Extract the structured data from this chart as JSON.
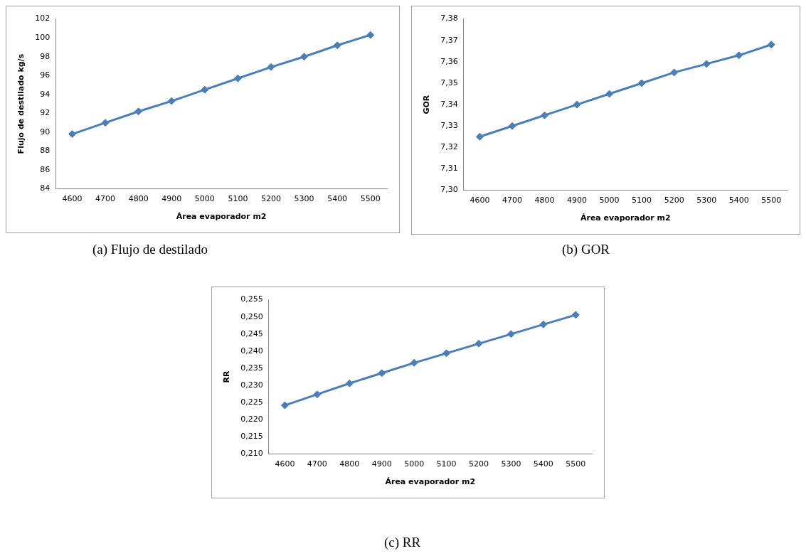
{
  "chart_data": [
    {
      "type": "line",
      "xlabel": "Área evaporador m2",
      "ylabel": "Flujo de destilado kg/s",
      "categories": [
        "4600",
        "4700",
        "4800",
        "4900",
        "5000",
        "5100",
        "5200",
        "5300",
        "5400",
        "5500"
      ],
      "series": [
        {
          "color": "#4a7ebb",
          "values": [
            89.8,
            91.0,
            92.2,
            93.3,
            94.5,
            95.7,
            96.9,
            98.0,
            99.2,
            100.3
          ]
        }
      ],
      "ylim": [
        84,
        102
      ],
      "yticks": [
        84,
        86,
        88,
        90,
        92,
        94,
        96,
        98,
        100,
        102
      ],
      "grid": false,
      "legend": false,
      "marker": "diamond",
      "line_style": "solid",
      "annotations": [
        "(a) Flujo de destilado"
      ]
    },
    {
      "type": "line",
      "xlabel": "Área evaporador m2",
      "ylabel": "GOR",
      "categories": [
        "4600",
        "4700",
        "4800",
        "4900",
        "5000",
        "5100",
        "5200",
        "5300",
        "5400",
        "5500"
      ],
      "series": [
        {
          "color": "#4a7ebb",
          "values": [
            7.325,
            7.33,
            7.335,
            7.34,
            7.345,
            7.35,
            7.355,
            7.359,
            7.363,
            7.368
          ]
        }
      ],
      "ylim": [
        7.3,
        7.38
      ],
      "yticks": [
        {
          "value": 7.3,
          "label": "7,30"
        },
        {
          "value": 7.31,
          "label": "7,31"
        },
        {
          "value": 7.32,
          "label": "7,32"
        },
        {
          "value": 7.33,
          "label": "7,33"
        },
        {
          "value": 7.34,
          "label": "7,34"
        },
        {
          "value": 7.35,
          "label": "7,35"
        },
        {
          "value": 7.36,
          "label": "7,36"
        },
        {
          "value": 7.37,
          "label": "7,37"
        },
        {
          "value": 7.38,
          "label": "7,38"
        }
      ],
      "grid": false,
      "legend": false,
      "marker": "diamond",
      "line_style": "solid",
      "annotations": [
        "(b) GOR"
      ]
    },
    {
      "type": "line",
      "xlabel": "Área evaporador m2",
      "ylabel": "RR",
      "categories": [
        "4600",
        "4700",
        "4800",
        "4900",
        "5000",
        "5100",
        "5200",
        "5300",
        "5400",
        "5500"
      ],
      "series": [
        {
          "color": "#4a7ebb",
          "values": [
            0.2242,
            0.2274,
            0.2306,
            0.2336,
            0.2366,
            0.2394,
            0.2422,
            0.245,
            0.2478,
            0.2506
          ]
        }
      ],
      "ylim": [
        0.21,
        0.255
      ],
      "yticks": [
        {
          "value": 0.21,
          "label": "0,210"
        },
        {
          "value": 0.215,
          "label": "0,215"
        },
        {
          "value": 0.22,
          "label": "0,220"
        },
        {
          "value": 0.225,
          "label": "0,225"
        },
        {
          "value": 0.23,
          "label": "0,230"
        },
        {
          "value": 0.235,
          "label": "0,235"
        },
        {
          "value": 0.24,
          "label": "0,240"
        },
        {
          "value": 0.245,
          "label": "0,245"
        },
        {
          "value": 0.25,
          "label": "0,250"
        },
        {
          "value": 0.255,
          "label": "0,255"
        }
      ],
      "grid": false,
      "legend": false,
      "marker": "diamond",
      "line_style": "solid",
      "annotations": [
        "(c) RR"
      ]
    }
  ]
}
